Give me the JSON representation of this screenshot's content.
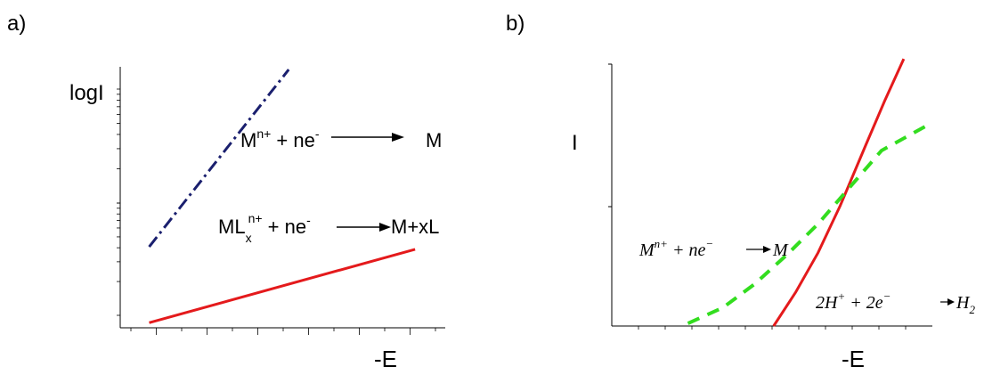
{
  "colors": {
    "red": "#e41a1c",
    "navy": "#1a1f6e",
    "green": "#33dd1f",
    "axis": "#000000"
  },
  "chart_data": [
    {
      "panel_label": "a)",
      "type": "line",
      "ylabel": "logI",
      "xlabel": "-E",
      "xlim": [
        0,
        10
      ],
      "ylim": [
        0,
        10
      ],
      "ylog_minor_ticks": true,
      "series": [
        {
          "color": "navy",
          "style": "dashdot",
          "x": [
            1.1,
            6.4
          ],
          "y": [
            3.2,
            10.2
          ]
        },
        {
          "color": "red",
          "style": "solid",
          "x": [
            1.1,
            11.2
          ],
          "y": [
            0.2,
            3.1
          ]
        }
      ],
      "annotations": {
        "top": {
          "base": "M",
          "sup": "n+",
          "mid": " + ne",
          "sup2": "-",
          "product": "M"
        },
        "bottom": {
          "base": "ML",
          "sub": "x",
          "sup": "n+",
          "mid": " + ne",
          "sup2": "-",
          "product": "M+xL"
        }
      }
    },
    {
      "panel_label": "b)",
      "type": "line",
      "ylabel": "I",
      "xlabel": "-E",
      "xlim": [
        0,
        10
      ],
      "ylim": [
        0,
        10
      ],
      "series": [
        {
          "color": "red",
          "style": "solid",
          "description_only": true,
          "x": [
            5.1,
            5.8,
            6.5,
            7.2,
            8.0,
            8.6,
            9.2
          ],
          "y": [
            0.0,
            1.3,
            2.8,
            4.6,
            6.9,
            8.6,
            10.2
          ]
        },
        {
          "color": "green",
          "style": "dashed",
          "x": [
            2.4,
            3.5,
            4.5,
            5.5,
            6.5,
            7.5,
            8.5,
            10.0
          ],
          "y": [
            0.1,
            0.7,
            1.6,
            2.7,
            3.9,
            5.3,
            6.7,
            7.7
          ]
        }
      ],
      "annotations": {
        "green": {
          "lhs": "M",
          "sup": "n+",
          "mid": " + ne",
          "sup2": "−",
          "product": "M"
        },
        "red": {
          "lhs": "2H",
          "sup": "+",
          "mid": " + 2e",
          "sup2": "−",
          "product": "H",
          "sub": "2"
        }
      }
    }
  ]
}
